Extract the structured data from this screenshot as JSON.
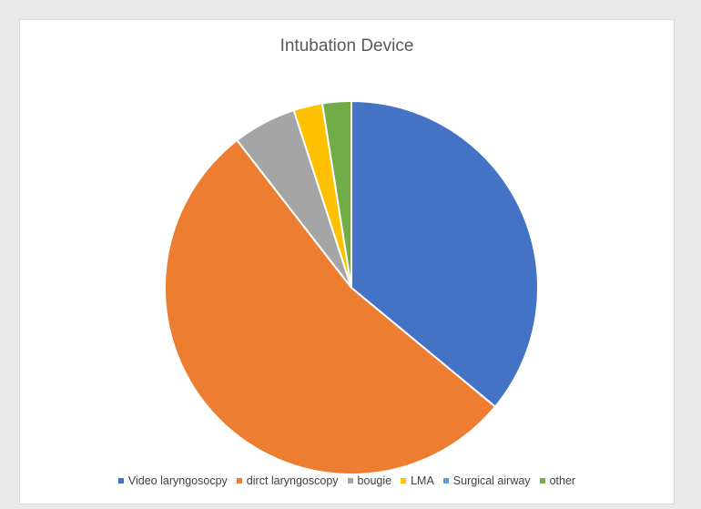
{
  "chart_data": {
    "type": "pie",
    "title": "Intubation Device",
    "categories": [
      "Video laryngosocpy",
      "dirct laryngoscopy",
      "bougie",
      "LMA",
      "Surgical airway",
      "other"
    ],
    "values": [
      36,
      53.5,
      5.5,
      2.5,
      0,
      2.5
    ],
    "colors": [
      "#4472c4",
      "#ed7d31",
      "#a5a5a5",
      "#ffc000",
      "#5b9bd5",
      "#70ad47"
    ],
    "legend_position": "bottom",
    "start_angle_deg": 0,
    "direction": "clockwise"
  }
}
